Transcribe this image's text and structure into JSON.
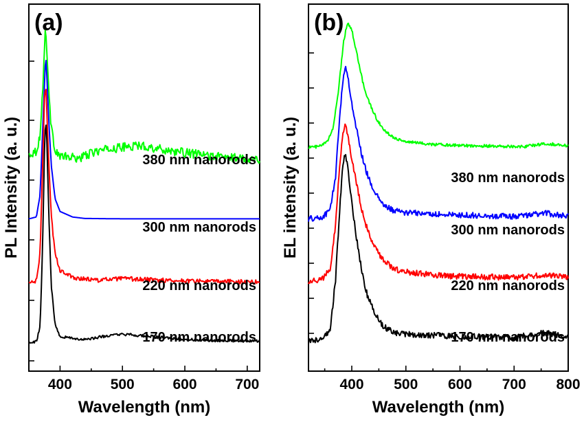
{
  "chart_data": [
    {
      "type": "line",
      "panel_label": "(a)",
      "xlabel": "Wavelength (nm)",
      "ylabel": "PL Intensity (a. u.)",
      "xlim": [
        350,
        720
      ],
      "xticks": [
        400,
        500,
        600,
        700
      ],
      "y_tick_labels": "none",
      "series": [
        {
          "name": "380 nm nanorods",
          "color": "#00ff00",
          "noise": 0.012,
          "points": [
            [
              350,
              0.59
            ],
            [
              362,
              0.6
            ],
            [
              368,
              0.64
            ],
            [
              372,
              0.76
            ],
            [
              375,
              0.88
            ],
            [
              377,
              0.94
            ],
            [
              379,
              0.87
            ],
            [
              382,
              0.76
            ],
            [
              386,
              0.66
            ],
            [
              392,
              0.605
            ],
            [
              400,
              0.585
            ],
            [
              430,
              0.58
            ],
            [
              460,
              0.6
            ],
            [
              500,
              0.61
            ],
            [
              530,
              0.615
            ],
            [
              560,
              0.605
            ],
            [
              600,
              0.595
            ],
            [
              650,
              0.585
            ],
            [
              700,
              0.58
            ],
            [
              720,
              0.578
            ]
          ]
        },
        {
          "name": "300 nm nanorods",
          "color": "#0000ff",
          "noise": 0.0,
          "points": [
            [
              350,
              0.415
            ],
            [
              362,
              0.42
            ],
            [
              368,
              0.48
            ],
            [
              372,
              0.65
            ],
            [
              375,
              0.78
            ],
            [
              377,
              0.862
            ],
            [
              379,
              0.8
            ],
            [
              382,
              0.68
            ],
            [
              386,
              0.56
            ],
            [
              392,
              0.47
            ],
            [
              400,
              0.435
            ],
            [
              420,
              0.42
            ],
            [
              440,
              0.416
            ],
            [
              500,
              0.415
            ],
            [
              600,
              0.415
            ],
            [
              720,
              0.415
            ]
          ]
        },
        {
          "name": "220 nm nanorods",
          "color": "#ff0000",
          "noise": 0.006,
          "points": [
            [
              350,
              0.24
            ],
            [
              362,
              0.245
            ],
            [
              368,
              0.32
            ],
            [
              372,
              0.56
            ],
            [
              375,
              0.74
            ],
            [
              377,
              0.785
            ],
            [
              379,
              0.7
            ],
            [
              382,
              0.56
            ],
            [
              386,
              0.42
            ],
            [
              392,
              0.32
            ],
            [
              400,
              0.275
            ],
            [
              420,
              0.255
            ],
            [
              460,
              0.248
            ],
            [
              500,
              0.252
            ],
            [
              560,
              0.248
            ],
            [
              620,
              0.245
            ],
            [
              720,
              0.243
            ]
          ]
        },
        {
          "name": "170 nm nanorods",
          "color": "#000000",
          "noise": 0.004,
          "points": [
            [
              350,
              0.08
            ],
            [
              362,
              0.08
            ],
            [
              368,
              0.12
            ],
            [
              372,
              0.34
            ],
            [
              375,
              0.6
            ],
            [
              377,
              0.69
            ],
            [
              379,
              0.62
            ],
            [
              382,
              0.43
            ],
            [
              386,
              0.23
            ],
            [
              392,
              0.13
            ],
            [
              400,
              0.095
            ],
            [
              440,
              0.085
            ],
            [
              470,
              0.095
            ],
            [
              500,
              0.1
            ],
            [
              530,
              0.097
            ],
            [
              570,
              0.09
            ],
            [
              620,
              0.085
            ],
            [
              720,
              0.082
            ]
          ]
        }
      ]
    },
    {
      "type": "line",
      "panel_label": "(b)",
      "xlabel": "Wavelength (nm)",
      "ylabel": "EL intensity (a. u.)",
      "xlim": [
        320,
        800
      ],
      "xticks": [
        400,
        500,
        600,
        700,
        800
      ],
      "y_tick_labels": "none",
      "series": [
        {
          "name": "380 nm nanorods",
          "color": "#00ff00",
          "noise": 0.004,
          "points": [
            [
              320,
              0.61
            ],
            [
              340,
              0.612
            ],
            [
              355,
              0.625
            ],
            [
              365,
              0.66
            ],
            [
              375,
              0.76
            ],
            [
              385,
              0.9
            ],
            [
              392,
              0.95
            ],
            [
              400,
              0.93
            ],
            [
              410,
              0.86
            ],
            [
              420,
              0.79
            ],
            [
              430,
              0.74
            ],
            [
              445,
              0.69
            ],
            [
              460,
              0.655
            ],
            [
              480,
              0.635
            ],
            [
              500,
              0.625
            ],
            [
              550,
              0.618
            ],
            [
              600,
              0.615
            ],
            [
              700,
              0.612
            ],
            [
              720,
              0.612
            ],
            [
              760,
              0.62
            ],
            [
              800,
              0.614
            ]
          ]
        },
        {
          "name": "300 nm nanorods",
          "color": "#0000ff",
          "noise": 0.008,
          "points": [
            [
              320,
              0.415
            ],
            [
              345,
              0.418
            ],
            [
              360,
              0.44
            ],
            [
              370,
              0.53
            ],
            [
              378,
              0.7
            ],
            [
              384,
              0.8
            ],
            [
              388,
              0.828
            ],
            [
              393,
              0.8
            ],
            [
              400,
              0.73
            ],
            [
              410,
              0.65
            ],
            [
              420,
              0.58
            ],
            [
              430,
              0.53
            ],
            [
              445,
              0.48
            ],
            [
              460,
              0.45
            ],
            [
              480,
              0.436
            ],
            [
              500,
              0.432
            ],
            [
              550,
              0.428
            ],
            [
              600,
              0.425
            ],
            [
              700,
              0.422
            ],
            [
              760,
              0.43
            ],
            [
              800,
              0.422
            ]
          ]
        },
        {
          "name": "220 nm nanorods",
          "color": "#ff0000",
          "noise": 0.008,
          "points": [
            [
              320,
              0.245
            ],
            [
              345,
              0.25
            ],
            [
              360,
              0.28
            ],
            [
              370,
              0.4
            ],
            [
              378,
              0.57
            ],
            [
              384,
              0.65
            ],
            [
              388,
              0.668
            ],
            [
              393,
              0.64
            ],
            [
              400,
              0.58
            ],
            [
              410,
              0.5
            ],
            [
              420,
              0.43
            ],
            [
              430,
              0.38
            ],
            [
              445,
              0.33
            ],
            [
              460,
              0.3
            ],
            [
              480,
              0.278
            ],
            [
              500,
              0.27
            ],
            [
              550,
              0.262
            ],
            [
              600,
              0.258
            ],
            [
              700,
              0.255
            ],
            [
              760,
              0.262
            ],
            [
              800,
              0.254
            ]
          ]
        },
        {
          "name": "170 nm nanorods",
          "color": "#000000",
          "noise": 0.008,
          "points": [
            [
              320,
              0.082
            ],
            [
              345,
              0.086
            ],
            [
              360,
              0.11
            ],
            [
              370,
              0.25
            ],
            [
              378,
              0.45
            ],
            [
              384,
              0.57
            ],
            [
              388,
              0.59
            ],
            [
              393,
              0.55
            ],
            [
              400,
              0.46
            ],
            [
              410,
              0.35
            ],
            [
              420,
              0.26
            ],
            [
              430,
              0.2
            ],
            [
              445,
              0.15
            ],
            [
              460,
              0.12
            ],
            [
              480,
              0.105
            ],
            [
              500,
              0.1
            ],
            [
              550,
              0.098
            ],
            [
              600,
              0.095
            ],
            [
              700,
              0.092
            ],
            [
              760,
              0.105
            ],
            [
              800,
              0.09
            ]
          ]
        }
      ]
    }
  ]
}
